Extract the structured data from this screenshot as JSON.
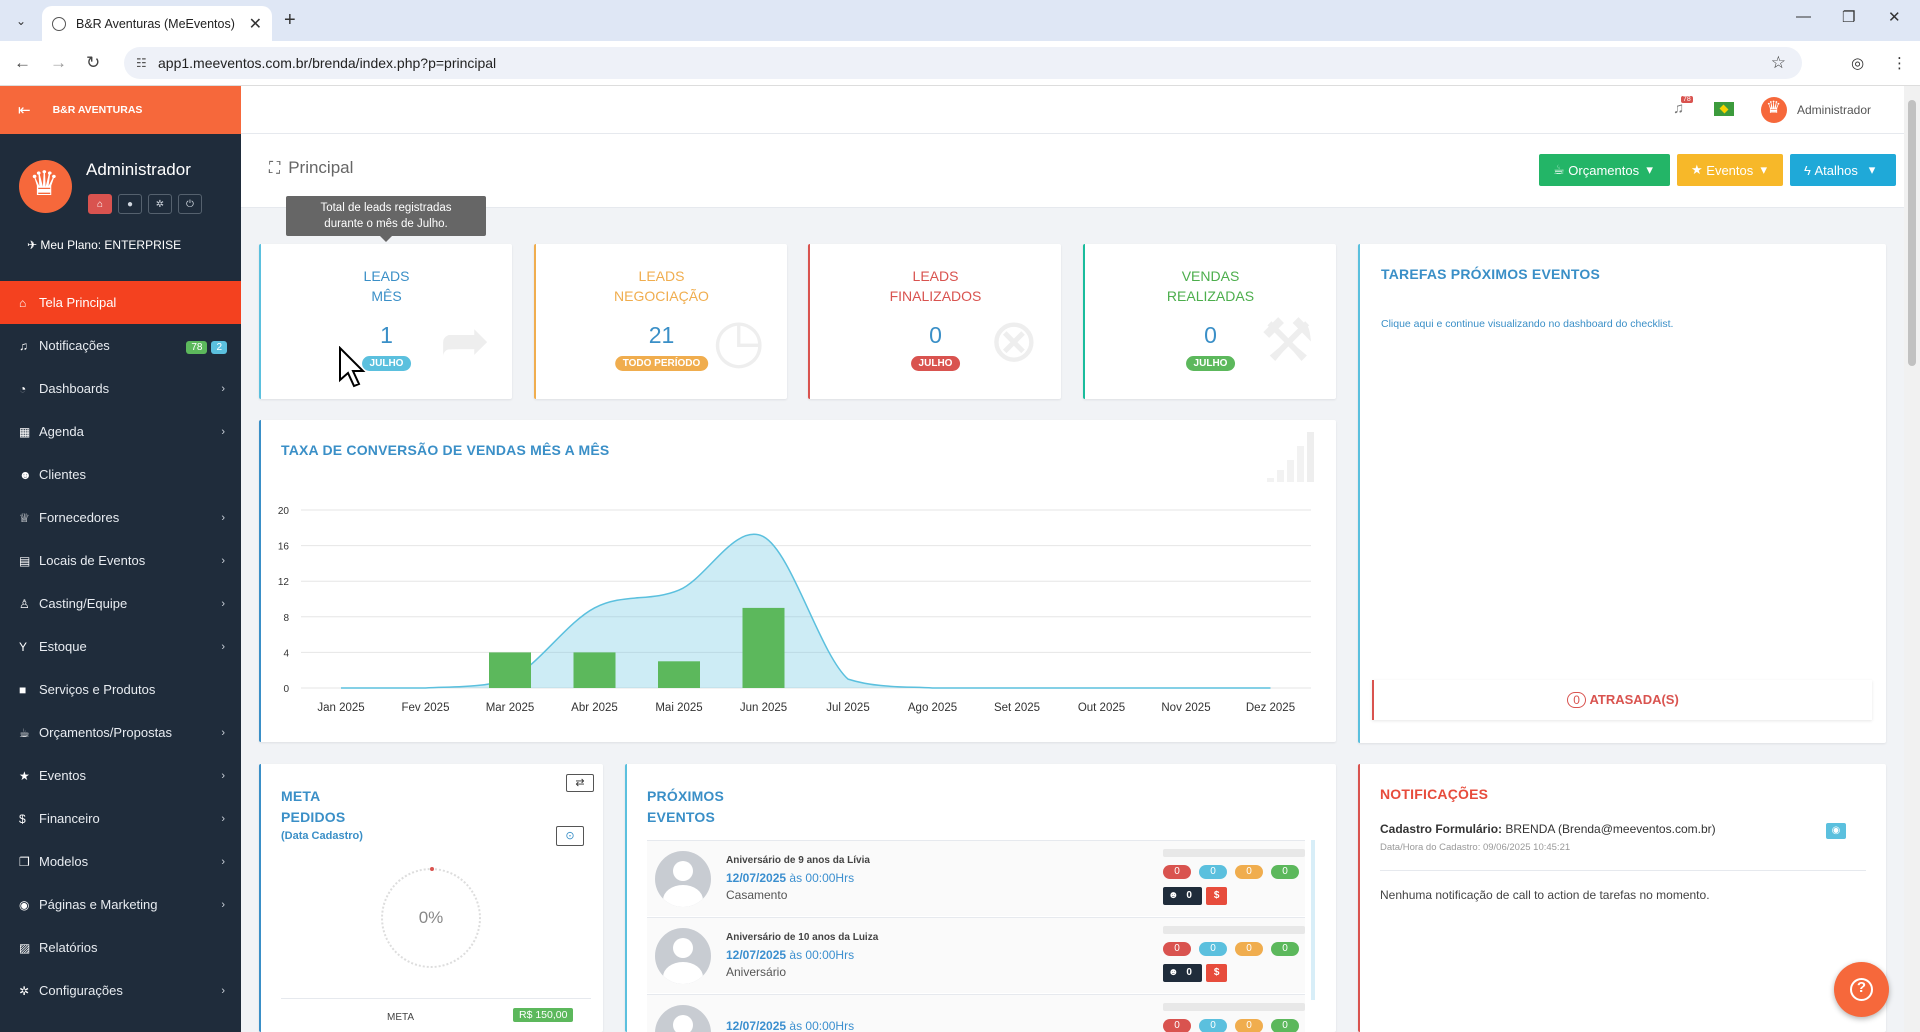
{
  "browser": {
    "tab_title": "B&R Aventuras (MeEventos)",
    "url": "app1.meeventos.com.br/brenda/index.php?p=principal"
  },
  "sidebar": {
    "brand": "B&R AVENTURAS",
    "user_name": "Administrador",
    "plan": "Meu Plano: ENTERPRISE",
    "items": [
      {
        "label": "Tela Principal",
        "icon": "home-icon"
      },
      {
        "label": "Notificações",
        "icon": "bell-icon",
        "badges": [
          "78",
          "2"
        ]
      },
      {
        "label": "Dashboards",
        "icon": "dashboard-icon"
      },
      {
        "label": "Agenda",
        "icon": "calendar-icon"
      },
      {
        "label": "Clientes",
        "icon": "users-icon"
      },
      {
        "label": "Fornecedores",
        "icon": "trophy-icon"
      },
      {
        "label": "Locais de Eventos",
        "icon": "building-icon"
      },
      {
        "label": "Casting/Equipe",
        "icon": "person-icon"
      },
      {
        "label": "Estoque",
        "icon": "glass-icon"
      },
      {
        "label": "Serviços e Produtos",
        "icon": "box-icon"
      },
      {
        "label": "Orçamentos/Propostas",
        "icon": "coffee-icon"
      },
      {
        "label": "Eventos",
        "icon": "star-icon"
      },
      {
        "label": "Financeiro",
        "icon": "dollar-icon"
      },
      {
        "label": "Modelos",
        "icon": "copy-icon"
      },
      {
        "label": "Páginas e Marketing",
        "icon": "globe-icon"
      },
      {
        "label": "Relatórios",
        "icon": "report-icon"
      },
      {
        "label": "Configurações",
        "icon": "gear-icon"
      }
    ]
  },
  "topbar": {
    "user": "Administrador",
    "notif_count": "78"
  },
  "header": {
    "title": "Principal",
    "buttons": {
      "orcamentos": "Orçamentos",
      "eventos": "Eventos",
      "atalhos": "Atalhos"
    }
  },
  "tooltip": {
    "line1": "Total de leads registradas",
    "line2": "durante o mês de Julho."
  },
  "stats": [
    {
      "l1": "LEADS",
      "l2": "MÊS",
      "value": "1",
      "pill": "JULHO",
      "color": "#3a8fc7",
      "pill_color": "#5bc0de"
    },
    {
      "l1": "LEADS",
      "l2": "NEGOCIAÇÃO",
      "value": "21",
      "pill": "TODO PERÍODO",
      "color": "#f0ad4e",
      "pill_color": "#f0ad4e"
    },
    {
      "l1": "LEADS",
      "l2": "FINALIZADOS",
      "value": "0",
      "pill": "JULHO",
      "color": "#d9534f",
      "pill_color": "#d9534f"
    },
    {
      "l1": "VENDAS",
      "l2": "REALIZADAS",
      "value": "0",
      "pill": "JULHO",
      "color": "#4cae4c",
      "pill_color": "#5cb85c"
    }
  ],
  "tasks": {
    "title": "TAREFAS PRÓXIMOS EVENTOS",
    "link": "Clique aqui e continue visualizando no dashboard do checklist.",
    "late_count": "0",
    "late_label": "ATRASADA(S)"
  },
  "chart": {
    "title": "TAXA DE CONVERSÃO DE VENDAS MÊS A MÊS"
  },
  "chart_data": {
    "type": "bar",
    "title": "TAXA DE CONVERSÃO DE VENDAS MÊS A MÊS",
    "categories": [
      "Jan 2025",
      "Fev 2025",
      "Mar 2025",
      "Abr 2025",
      "Mai 2025",
      "Jun 2025",
      "Jul 2025",
      "Ago 2025",
      "Set 2025",
      "Out 2025",
      "Nov 2025",
      "Dez 2025"
    ],
    "series": [
      {
        "type": "area",
        "values": [
          0,
          0,
          1,
          9,
          11,
          17,
          1,
          0,
          0,
          0,
          0,
          0
        ]
      },
      {
        "type": "bar",
        "values": [
          0,
          0,
          4,
          4,
          3,
          9,
          0,
          0,
          0,
          0,
          0,
          0
        ]
      }
    ],
    "yticks": [
      "20",
      "16",
      "12",
      "8",
      "4",
      "0"
    ],
    "ylim": [
      0,
      20
    ],
    "colors": {
      "bar": "#5cb85c",
      "area": "#5bc0de"
    }
  },
  "meta": {
    "title1": "META",
    "title2": "PEDIDOS",
    "subtitle": "(Data Cadastro)",
    "percent": "0%",
    "meta_label": "META",
    "meta_value": "R$ 150,00"
  },
  "proximos": {
    "title1": "PRÓXIMOS",
    "title2": "EVENTOS",
    "events": [
      {
        "name": "Aniversário de 9 anos da Lívia",
        "date": "12/07/2025",
        "time": " às 00:00Hrs",
        "type": "Casamento",
        "counts": [
          "0",
          "0",
          "0",
          "0"
        ],
        "staff": "0",
        "money": "$"
      },
      {
        "name": "Aniversário de 10 anos da Luiza",
        "date": "12/07/2025",
        "time": " às 00:00Hrs",
        "type": "Aniversário",
        "counts": [
          "0",
          "0",
          "0",
          "0"
        ],
        "staff": "0",
        "money": "$"
      },
      {
        "name": "",
        "date": "12/07/2025",
        "time": " às 00:00Hrs",
        "type": "",
        "counts": [
          "0",
          "0",
          "0",
          "0"
        ],
        "staff": "",
        "money": ""
      }
    ]
  },
  "notificacoes": {
    "title": "NOTIFICAÇÕES",
    "form_label": "Cadastro Formulário:",
    "form_value": " BRENDA (Brenda@meeventos.com.br)",
    "form_date": "Data/Hora do Cadastro: 09/06/2025 10:45:21",
    "empty": "Nenhuma notificação de call to action de tarefas no momento."
  }
}
